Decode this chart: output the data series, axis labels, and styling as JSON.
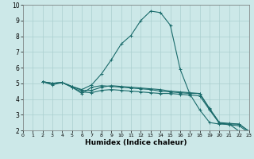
{
  "title": "",
  "xlabel": "Humidex (Indice chaleur)",
  "xlim": [
    0,
    23
  ],
  "ylim": [
    2,
    10
  ],
  "xticks": [
    0,
    1,
    2,
    3,
    4,
    5,
    6,
    7,
    8,
    9,
    10,
    11,
    12,
    13,
    14,
    15,
    16,
    17,
    18,
    19,
    20,
    21,
    22,
    23
  ],
  "yticks": [
    2,
    3,
    4,
    5,
    6,
    7,
    8,
    9,
    10
  ],
  "bg_color": "#cce8e8",
  "grid_color": "#aacfcf",
  "line_color": "#1a6b6b",
  "lines": [
    {
      "x": [
        2,
        3,
        4,
        5,
        6,
        7,
        8,
        9,
        10,
        11,
        12,
        13,
        14,
        15,
        16,
        17,
        18,
        19,
        20,
        21,
        22,
        23
      ],
      "y": [
        5.1,
        5.0,
        5.05,
        4.8,
        4.6,
        4.9,
        5.6,
        6.5,
        7.5,
        8.05,
        9.0,
        9.6,
        9.5,
        8.7,
        5.9,
        4.3,
        3.3,
        2.5,
        2.4,
        2.4,
        1.95,
        1.9
      ]
    },
    {
      "x": [
        2,
        3,
        4,
        5,
        6,
        7,
        8,
        9,
        10,
        11,
        12,
        13,
        14,
        15,
        16,
        17,
        18,
        19,
        20,
        21,
        22,
        23
      ],
      "y": [
        5.1,
        5.0,
        5.05,
        4.8,
        4.55,
        4.55,
        4.75,
        4.85,
        4.8,
        4.75,
        4.7,
        4.65,
        4.6,
        4.5,
        4.45,
        4.4,
        4.35,
        3.4,
        2.5,
        2.45,
        2.4,
        1.95
      ]
    },
    {
      "x": [
        2,
        3,
        4,
        5,
        6,
        7,
        8,
        9,
        10,
        11,
        12,
        13,
        14,
        15,
        16,
        17,
        18,
        19,
        20,
        21,
        22,
        23
      ],
      "y": [
        5.1,
        5.0,
        5.05,
        4.75,
        4.45,
        4.4,
        4.55,
        4.6,
        4.55,
        4.5,
        4.45,
        4.4,
        4.35,
        4.35,
        4.3,
        4.25,
        4.2,
        3.3,
        2.45,
        2.4,
        2.4,
        1.95
      ]
    },
    {
      "x": [
        2,
        3,
        4,
        5,
        6,
        7,
        8,
        9,
        10,
        11,
        12,
        13,
        14,
        15,
        16,
        17,
        18,
        19,
        20,
        21,
        22,
        23
      ],
      "y": [
        5.1,
        4.9,
        5.05,
        4.75,
        4.35,
        4.75,
        4.85,
        4.8,
        4.75,
        4.7,
        4.65,
        4.6,
        4.5,
        4.45,
        4.4,
        4.35,
        4.35,
        3.35,
        2.45,
        2.35,
        2.3,
        1.85
      ]
    }
  ]
}
